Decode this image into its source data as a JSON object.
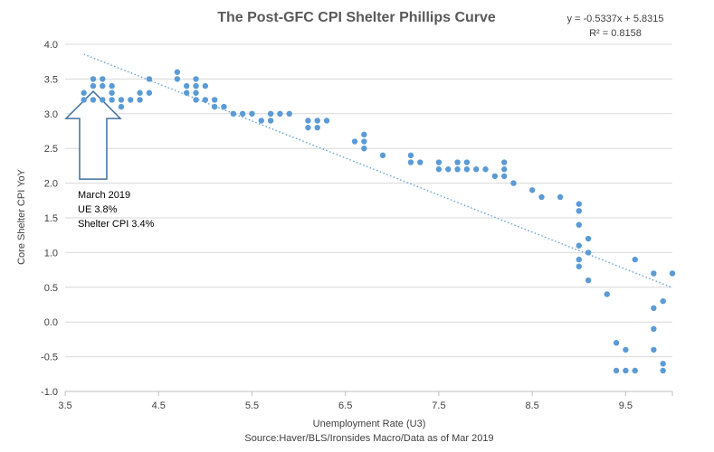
{
  "chart_data": {
    "type": "scatter",
    "title": "The Post-GFC CPI Shelter Phillips Curve",
    "xlabel": "Unemployment Rate (U3)",
    "ylabel": "Core Shelter CPI YoY",
    "source": "Source:Haver/BLS/Ironsides Macro/Data as of Mar 2019",
    "trendline": {
      "slope": -0.5337,
      "intercept": 5.8315,
      "equation": "y = -0.5337x + 5.8315",
      "r2": "R² = 0.8158",
      "x_range": [
        3.7,
        10.0
      ]
    },
    "annotation": {
      "lines": [
        "March 2019",
        "UE 3.8%",
        "Shelter CPI 3.4%"
      ],
      "x": 3.8,
      "y": 3.4
    },
    "xlim": [
      3.5,
      10.0
    ],
    "ylim": [
      -1.0,
      4.0
    ],
    "x_ticks": [
      "3.5",
      "4.5",
      "5.5",
      "6.5",
      "7.5",
      "8.5",
      "9.5"
    ],
    "y_ticks": [
      "4.0",
      "3.5",
      "3.0",
      "2.5",
      "2.0",
      "1.5",
      "1.0",
      "0.5",
      "0.0",
      "-0.5",
      "-1.0"
    ],
    "grid": "horizontal",
    "series": [
      {
        "color": "#5B9BD5",
        "points": [
          [
            3.7,
            3.3
          ],
          [
            3.7,
            3.2
          ],
          [
            3.8,
            3.5
          ],
          [
            3.8,
            3.4
          ],
          [
            3.8,
            3.2
          ],
          [
            3.9,
            3.5
          ],
          [
            3.9,
            3.4
          ],
          [
            3.9,
            3.2
          ],
          [
            4.0,
            3.4
          ],
          [
            4.0,
            3.3
          ],
          [
            4.0,
            3.2
          ],
          [
            4.1,
            3.2
          ],
          [
            4.1,
            3.1
          ],
          [
            4.2,
            3.2
          ],
          [
            4.3,
            3.3
          ],
          [
            4.3,
            3.2
          ],
          [
            4.4,
            3.5
          ],
          [
            4.4,
            3.3
          ],
          [
            4.7,
            3.6
          ],
          [
            4.7,
            3.5
          ],
          [
            4.8,
            3.4
          ],
          [
            4.8,
            3.3
          ],
          [
            4.9,
            3.5
          ],
          [
            4.9,
            3.4
          ],
          [
            4.9,
            3.3
          ],
          [
            4.9,
            3.2
          ],
          [
            5.0,
            3.4
          ],
          [
            5.0,
            3.2
          ],
          [
            5.1,
            3.2
          ],
          [
            5.1,
            3.1
          ],
          [
            5.2,
            3.1
          ],
          [
            5.3,
            3.0
          ],
          [
            5.4,
            3.0
          ],
          [
            5.5,
            3.0
          ],
          [
            5.6,
            2.9
          ],
          [
            5.7,
            3.0
          ],
          [
            5.7,
            2.9
          ],
          [
            5.8,
            3.0
          ],
          [
            5.9,
            3.0
          ],
          [
            6.1,
            2.9
          ],
          [
            6.1,
            2.8
          ],
          [
            6.2,
            2.9
          ],
          [
            6.2,
            2.8
          ],
          [
            6.3,
            2.9
          ],
          [
            6.6,
            2.6
          ],
          [
            6.7,
            2.7
          ],
          [
            6.7,
            2.6
          ],
          [
            6.7,
            2.5
          ],
          [
            6.9,
            2.4
          ],
          [
            7.2,
            2.4
          ],
          [
            7.2,
            2.3
          ],
          [
            7.3,
            2.3
          ],
          [
            7.5,
            2.3
          ],
          [
            7.5,
            2.2
          ],
          [
            7.6,
            2.2
          ],
          [
            7.7,
            2.3
          ],
          [
            7.7,
            2.2
          ],
          [
            7.8,
            2.3
          ],
          [
            7.8,
            2.2
          ],
          [
            7.9,
            2.2
          ],
          [
            8.0,
            2.2
          ],
          [
            8.1,
            2.1
          ],
          [
            8.2,
            2.3
          ],
          [
            8.2,
            2.2
          ],
          [
            8.2,
            2.1
          ],
          [
            8.3,
            2.0
          ],
          [
            8.5,
            1.9
          ],
          [
            8.6,
            1.8
          ],
          [
            8.8,
            1.8
          ],
          [
            9.0,
            1.7
          ],
          [
            9.0,
            1.6
          ],
          [
            9.0,
            1.4
          ],
          [
            9.1,
            1.2
          ],
          [
            9.0,
            1.1
          ],
          [
            9.1,
            1.0
          ],
          [
            9.0,
            0.9
          ],
          [
            9.0,
            0.8
          ],
          [
            9.1,
            0.6
          ],
          [
            9.3,
            0.4
          ],
          [
            9.6,
            0.9
          ],
          [
            9.8,
            0.7
          ],
          [
            10.0,
            0.7
          ],
          [
            9.9,
            0.3
          ],
          [
            9.8,
            0.2
          ],
          [
            9.8,
            -0.1
          ],
          [
            9.4,
            -0.3
          ],
          [
            9.5,
            -0.4
          ],
          [
            9.8,
            -0.4
          ],
          [
            9.9,
            -0.6
          ],
          [
            9.4,
            -0.7
          ],
          [
            9.5,
            -0.7
          ],
          [
            9.6,
            -0.7
          ],
          [
            9.9,
            -0.7
          ]
        ]
      }
    ]
  }
}
